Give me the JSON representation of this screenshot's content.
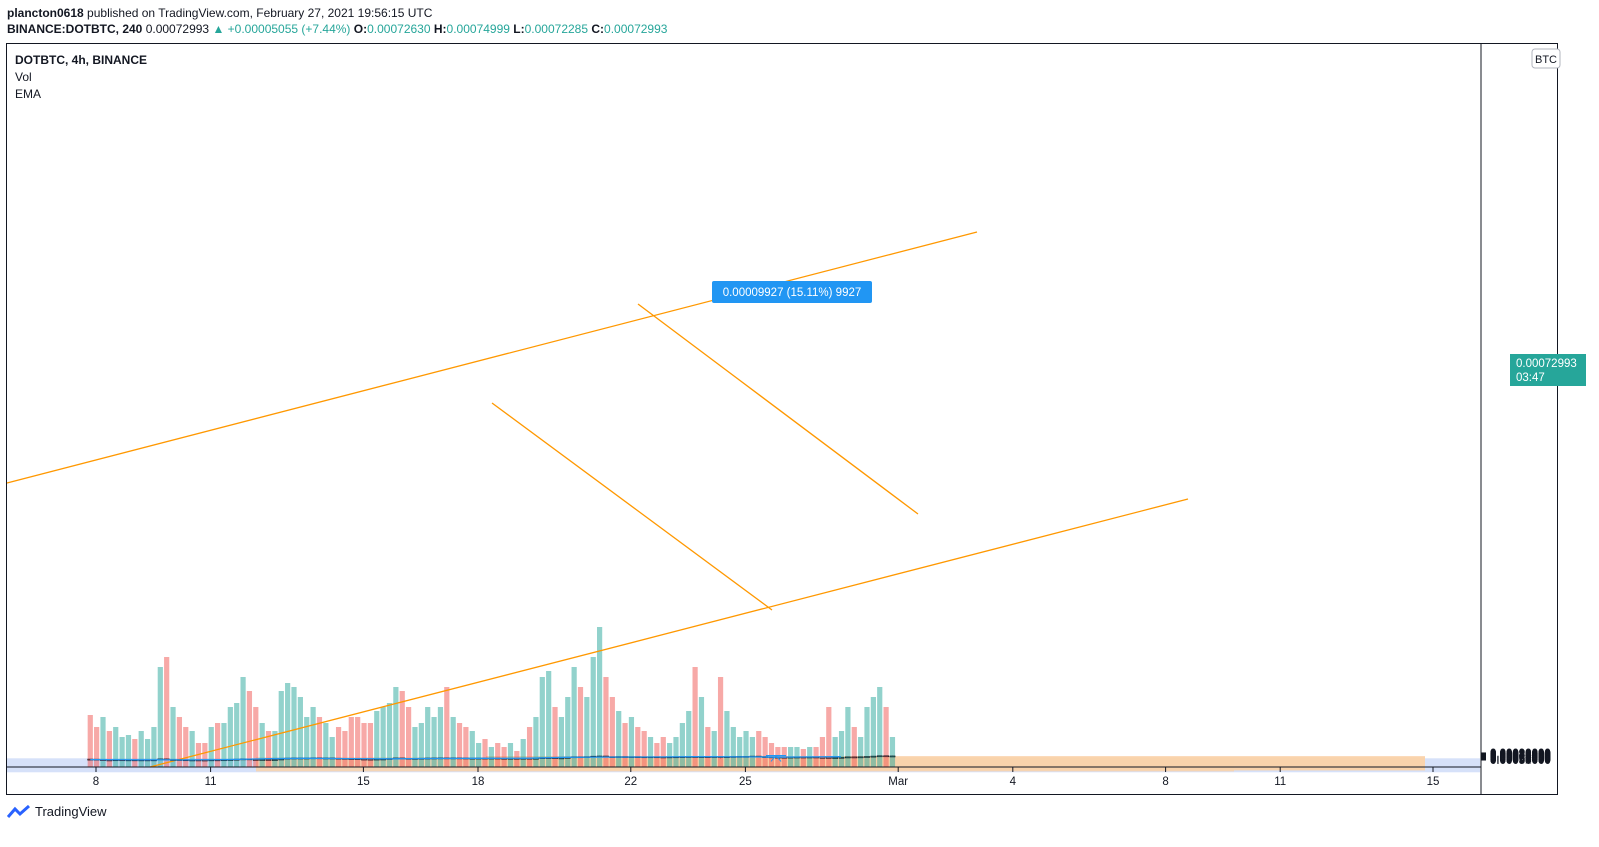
{
  "header": {
    "publisher": "plancton0618",
    "published_text": "published on TradingView.com, February 27, 2021 19:56:15 UTC",
    "symbol_interval": "BINANCE:DOTBTC, 240",
    "last": "0.00072993",
    "change": "▲ +0.00005055 (+7.44%)",
    "o_label": "O:",
    "o": "0.00072630",
    "h_label": "H:",
    "h": "0.00074999",
    "l_label": "L:",
    "l": "0.00072285",
    "c_label": "C:",
    "c": "0.00072993"
  },
  "legend": {
    "symbol": "DOTBTC, 4h, BINANCE",
    "vol": "Vol",
    "ema": "EMA"
  },
  "currency_badge": "BTC",
  "price_tag": {
    "price": "0.00072993",
    "countdown": "03:47"
  },
  "measure_label": "0.00009927 (15.11%) 9927",
  "footer": {
    "brand": "TradingView"
  },
  "colors": {
    "up": "#26a69a",
    "down": "#ef5350",
    "ema": "#2196f3",
    "trendline": "#ff9800",
    "zone_orange": "#f9d2aa",
    "zone_blue": "#cfdcf8",
    "measure": "#2196f3"
  },
  "chart_data": {
    "type": "candlestick",
    "title": "DOTBTC, 4h, BINANCE",
    "y_ticks": [
      "0.00050000",
      "0.00052000",
      "0.00054000",
      "0.00056000",
      "0.00058000",
      "0.00060000",
      "0.00062000",
      "0.00064000",
      "0.00066000",
      "0.00068000",
      "0.00070000",
      "0.00072000",
      "0.00074000",
      "0.00076000",
      "0.00078000",
      "0.00080000",
      "0.00082000",
      "0.00084000",
      "0.00086000",
      "0.00088000",
      "0.00090000"
    ],
    "y_range": [
      0.000495,
      0.00091
    ],
    "x_ticks": [
      {
        "label": "8",
        "day": 8
      },
      {
        "label": "11",
        "day": 11
      },
      {
        "label": "15",
        "day": 15
      },
      {
        "label": "18",
        "day": 18
      },
      {
        "label": "22",
        "day": 22
      },
      {
        "label": "25",
        "day": 25
      },
      {
        "label": "Mar",
        "day": 29
      },
      {
        "label": "4",
        "day": 32
      },
      {
        "label": "8",
        "day": 36
      },
      {
        "label": "11",
        "day": 39
      },
      {
        "label": "15",
        "day": 43
      }
    ],
    "x_start_day": 7.85,
    "bar_hours": 4,
    "candles": [
      [
        5.5,
        5.45,
        5.52,
        5.4
      ],
      [
        5.45,
        5.2,
        5.48,
        5.15
      ],
      [
        5.2,
        5.05,
        5.22,
        4.98
      ],
      [
        5.05,
        4.95,
        5.08,
        4.9
      ],
      [
        4.95,
        5.15,
        5.18,
        4.92
      ],
      [
        5.15,
        5.0,
        5.18,
        4.95
      ],
      [
        5.0,
        5.1,
        5.12,
        4.98
      ],
      [
        5.1,
        5.05,
        5.15,
        5.0
      ],
      [
        5.05,
        5.08,
        5.1,
        5.0
      ],
      [
        5.08,
        5.05,
        5.12,
        5.02
      ],
      [
        5.05,
        5.1,
        5.13,
        5.0
      ],
      [
        5.1,
        5.6,
        5.8,
        5.05
      ],
      [
        5.6,
        5.0,
        5.95,
        4.98
      ],
      [
        5.0,
        5.25,
        5.3,
        4.95
      ],
      [
        5.25,
        5.15,
        5.35,
        5.1
      ],
      [
        5.15,
        5.0,
        5.2,
        4.95
      ],
      [
        5.0,
        5.05,
        5.1,
        4.98
      ],
      [
        5.05,
        5.0,
        5.08,
        4.96
      ],
      [
        5.0,
        4.98,
        5.02,
        4.95
      ],
      [
        4.98,
        5.1,
        5.15,
        4.95
      ],
      [
        5.1,
        5.05,
        5.14,
        5.0
      ],
      [
        5.05,
        5.15,
        5.2,
        5.02
      ],
      [
        5.15,
        5.25,
        5.3,
        5.1
      ],
      [
        5.25,
        5.45,
        5.5,
        5.2
      ],
      [
        5.45,
        5.65,
        5.7,
        5.4
      ],
      [
        5.65,
        5.3,
        5.68,
        5.25
      ],
      [
        5.3,
        5.2,
        5.4,
        5.15
      ],
      [
        5.2,
        5.3,
        5.35,
        5.15
      ],
      [
        5.3,
        5.2,
        5.35,
        5.15
      ],
      [
        5.2,
        5.25,
        5.35,
        5.15
      ],
      [
        5.25,
        5.6,
        5.65,
        5.2
      ],
      [
        5.6,
        6.05,
        6.1,
        5.55
      ],
      [
        6.05,
        6.15,
        6.3,
        6.0
      ],
      [
        6.15,
        6.1,
        6.35,
        6.05
      ],
      [
        6.1,
        6.15,
        6.2,
        6.0
      ],
      [
        6.15,
        6.25,
        6.3,
        6.05
      ],
      [
        6.25,
        6.1,
        6.28,
        5.95
      ],
      [
        6.1,
        6.15,
        6.22,
        6.05
      ],
      [
        6.15,
        6.0,
        6.2,
        5.9
      ],
      [
        6.0,
        5.95,
        6.1,
        5.85
      ],
      [
        5.95,
        5.8,
        6.0,
        5.75
      ],
      [
        5.8,
        5.75,
        5.9,
        5.7
      ],
      [
        5.75,
        5.55,
        5.8,
        5.5
      ],
      [
        5.55,
        5.5,
        5.65,
        5.45
      ],
      [
        5.5,
        5.45,
        5.55,
        5.35
      ],
      [
        5.45,
        5.55,
        5.6,
        5.4
      ],
      [
        5.55,
        5.6,
        5.7,
        5.5
      ],
      [
        5.6,
        5.85,
        5.95,
        5.55
      ],
      [
        5.85,
        6.15,
        6.2,
        5.8
      ],
      [
        6.15,
        5.95,
        6.18,
        5.9
      ],
      [
        5.95,
        5.85,
        6.0,
        5.8
      ],
      [
        5.85,
        5.9,
        5.95,
        5.8
      ],
      [
        5.9,
        6.0,
        6.05,
        5.85
      ],
      [
        6.0,
        6.1,
        6.3,
        5.95
      ],
      [
        6.1,
        6.15,
        6.25,
        6.05
      ],
      [
        6.15,
        6.2,
        6.4,
        6.1
      ],
      [
        6.2,
        6.05,
        6.45,
        6.0
      ],
      [
        6.05,
        6.2,
        6.25,
        6.0
      ],
      [
        6.2,
        6.15,
        6.25,
        6.05
      ],
      [
        6.15,
        5.95,
        6.2,
        5.9
      ],
      [
        5.95,
        6.05,
        6.1,
        5.9
      ],
      [
        6.05,
        6.1,
        6.15,
        6.0
      ],
      [
        6.1,
        6.05,
        6.2,
        6.0
      ],
      [
        6.05,
        6.1,
        6.15,
        6.0
      ],
      [
        6.1,
        6.0,
        6.2,
        5.95
      ],
      [
        6.0,
        5.98,
        6.05,
        5.92
      ],
      [
        5.98,
        6.0,
        6.08,
        5.95
      ],
      [
        6.0,
        5.95,
        6.02,
        5.9
      ],
      [
        5.95,
        6.02,
        6.08,
        5.88
      ],
      [
        6.02,
        5.85,
        6.05,
        5.8
      ],
      [
        5.85,
        6.0,
        6.05,
        5.82
      ],
      [
        6.0,
        6.35,
        6.45,
        5.95
      ],
      [
        6.35,
        6.3,
        6.45,
        6.2
      ],
      [
        6.3,
        6.1,
        6.35,
        6.05
      ],
      [
        6.1,
        6.2,
        6.25,
        6.05
      ],
      [
        6.2,
        6.5,
        6.6,
        6.15
      ],
      [
        6.5,
        6.85,
        6.95,
        6.45
      ],
      [
        6.85,
        6.8,
        6.95,
        6.7
      ],
      [
        6.8,
        6.9,
        7.0,
        6.75
      ],
      [
        6.9,
        7.15,
        7.3,
        6.85
      ],
      [
        7.15,
        7.25,
        7.45,
        7.05
      ],
      [
        7.25,
        6.9,
        7.3,
        6.85
      ],
      [
        6.9,
        6.85,
        7.0,
        6.75
      ],
      [
        6.85,
        6.95,
        7.05,
        6.8
      ],
      [
        6.95,
        6.8,
        7.0,
        6.7
      ],
      [
        6.8,
        6.9,
        6.95,
        6.7
      ],
      [
        6.9,
        6.85,
        7.0,
        6.75
      ],
      [
        6.85,
        6.8,
        6.92,
        6.7
      ],
      [
        6.8,
        6.85,
        6.9,
        6.65
      ],
      [
        6.85,
        6.75,
        6.9,
        6.65
      ],
      [
        6.75,
        6.7,
        6.85,
        6.55
      ],
      [
        6.7,
        6.8,
        6.88,
        6.6
      ],
      [
        6.8,
        6.85,
        6.95,
        6.75
      ],
      [
        6.85,
        6.9,
        6.98,
        6.8
      ],
      [
        6.9,
        6.95,
        7.05,
        6.85
      ],
      [
        6.95,
        6.65,
        7.0,
        6.4
      ],
      [
        6.65,
        6.9,
        7.05,
        6.6
      ],
      [
        6.9,
        6.85,
        7.0,
        6.8
      ],
      [
        6.85,
        6.95,
        7.0,
        6.75
      ],
      [
        6.95,
        6.4,
        7.1,
        5.75
      ],
      [
        6.4,
        6.9,
        7.15,
        6.35
      ],
      [
        6.9,
        7.0,
        7.1,
        6.85
      ],
      [
        7.0,
        7.05,
        7.12,
        6.95
      ],
      [
        7.05,
        7.05,
        7.1,
        6.98
      ],
      [
        7.05,
        7.2,
        7.25,
        7.0
      ],
      [
        7.2,
        6.95,
        7.25,
        6.9
      ],
      [
        6.95,
        6.8,
        7.0,
        6.75
      ],
      [
        6.8,
        6.65,
        6.85,
        6.6
      ],
      [
        6.65,
        6.6,
        6.8,
        6.55
      ],
      [
        6.6,
        6.55,
        6.65,
        6.5
      ],
      [
        6.55,
        6.65,
        6.72,
        6.5
      ],
      [
        6.65,
        6.7,
        6.75,
        6.6
      ],
      [
        6.7,
        6.65,
        6.78,
        6.55
      ],
      [
        6.65,
        6.72,
        6.78,
        6.6
      ],
      [
        6.72,
        6.55,
        6.75,
        6.5
      ],
      [
        6.55,
        6.5,
        6.6,
        6.45
      ],
      [
        6.5,
        6.35,
        6.55,
        6.25
      ],
      [
        6.35,
        6.4,
        6.5,
        6.25
      ],
      [
        6.4,
        6.55,
        6.6,
        6.35
      ],
      [
        6.55,
        6.75,
        6.9,
        6.5
      ],
      [
        6.75,
        6.7,
        6.9,
        6.65
      ],
      [
        6.7,
        6.8,
        6.85,
        6.65
      ],
      [
        6.8,
        7.0,
        7.1,
        6.75
      ],
      [
        7.0,
        7.2,
        7.25,
        6.95
      ],
      [
        7.2,
        7.4,
        7.55,
        7.15
      ],
      [
        7.4,
        7.3,
        7.55,
        7.25
      ],
      [
        7.3,
        7.3,
        7.5,
        7.22
      ]
    ],
    "volume": [
      [
        0.26,
        0
      ],
      [
        0.2,
        0
      ],
      [
        0.25,
        1
      ],
      [
        0.18,
        0
      ],
      [
        0.2,
        1
      ],
      [
        0.15,
        1
      ],
      [
        0.16,
        1
      ],
      [
        0.14,
        0
      ],
      [
        0.18,
        1
      ],
      [
        0.14,
        1
      ],
      [
        0.2,
        1
      ],
      [
        0.5,
        1
      ],
      [
        0.55,
        0
      ],
      [
        0.3,
        1
      ],
      [
        0.25,
        0
      ],
      [
        0.2,
        0
      ],
      [
        0.18,
        1
      ],
      [
        0.12,
        0
      ],
      [
        0.12,
        0
      ],
      [
        0.2,
        1
      ],
      [
        0.22,
        0
      ],
      [
        0.22,
        1
      ],
      [
        0.3,
        1
      ],
      [
        0.32,
        1
      ],
      [
        0.45,
        1
      ],
      [
        0.38,
        0
      ],
      [
        0.3,
        0
      ],
      [
        0.22,
        1
      ],
      [
        0.18,
        0
      ],
      [
        0.18,
        1
      ],
      [
        0.38,
        1
      ],
      [
        0.42,
        1
      ],
      [
        0.4,
        1
      ],
      [
        0.35,
        1
      ],
      [
        0.25,
        1
      ],
      [
        0.3,
        1
      ],
      [
        0.25,
        0
      ],
      [
        0.22,
        1
      ],
      [
        0.15,
        1
      ],
      [
        0.2,
        0
      ],
      [
        0.18,
        0
      ],
      [
        0.25,
        0
      ],
      [
        0.25,
        0
      ],
      [
        0.22,
        0
      ],
      [
        0.22,
        0
      ],
      [
        0.28,
        1
      ],
      [
        0.3,
        1
      ],
      [
        0.32,
        1
      ],
      [
        0.4,
        1
      ],
      [
        0.38,
        0
      ],
      [
        0.3,
        0
      ],
      [
        0.2,
        1
      ],
      [
        0.22,
        1
      ],
      [
        0.3,
        1
      ],
      [
        0.25,
        1
      ],
      [
        0.3,
        1
      ],
      [
        0.4,
        0
      ],
      [
        0.25,
        1
      ],
      [
        0.22,
        0
      ],
      [
        0.2,
        0
      ],
      [
        0.18,
        1
      ],
      [
        0.12,
        1
      ],
      [
        0.14,
        0
      ],
      [
        0.1,
        1
      ],
      [
        0.12,
        0
      ],
      [
        0.1,
        0
      ],
      [
        0.12,
        1
      ],
      [
        0.08,
        0
      ],
      [
        0.14,
        1
      ],
      [
        0.2,
        0
      ],
      [
        0.25,
        1
      ],
      [
        0.45,
        1
      ],
      [
        0.48,
        1
      ],
      [
        0.3,
        0
      ],
      [
        0.25,
        1
      ],
      [
        0.35,
        1
      ],
      [
        0.5,
        1
      ],
      [
        0.4,
        0
      ],
      [
        0.35,
        1
      ],
      [
        0.55,
        1
      ],
      [
        0.7,
        1
      ],
      [
        0.45,
        0
      ],
      [
        0.35,
        0
      ],
      [
        0.28,
        1
      ],
      [
        0.22,
        0
      ],
      [
        0.25,
        1
      ],
      [
        0.2,
        0
      ],
      [
        0.18,
        0
      ],
      [
        0.15,
        1
      ],
      [
        0.12,
        0
      ],
      [
        0.15,
        0
      ],
      [
        0.12,
        1
      ],
      [
        0.15,
        1
      ],
      [
        0.22,
        1
      ],
      [
        0.28,
        1
      ],
      [
        0.5,
        0
      ],
      [
        0.35,
        1
      ],
      [
        0.2,
        0
      ],
      [
        0.18,
        1
      ],
      [
        0.45,
        0
      ],
      [
        0.28,
        1
      ],
      [
        0.2,
        1
      ],
      [
        0.15,
        1
      ],
      [
        0.18,
        1
      ],
      [
        0.15,
        1
      ],
      [
        0.18,
        0
      ],
      [
        0.15,
        0
      ],
      [
        0.12,
        0
      ],
      [
        0.1,
        0
      ],
      [
        0.1,
        0
      ],
      [
        0.1,
        1
      ],
      [
        0.1,
        1
      ],
      [
        0.09,
        0
      ],
      [
        0.1,
        1
      ],
      [
        0.1,
        0
      ],
      [
        0.15,
        0
      ],
      [
        0.3,
        0
      ],
      [
        0.15,
        1
      ],
      [
        0.18,
        1
      ],
      [
        0.3,
        1
      ],
      [
        0.2,
        0
      ],
      [
        0.15,
        1
      ],
      [
        0.3,
        1
      ],
      [
        0.35,
        1
      ],
      [
        0.4,
        1
      ],
      [
        0.3,
        0
      ],
      [
        0.15,
        1
      ]
    ],
    "ema": [
      [
        7.85,
        5.25
      ],
      [
        9,
        5.1
      ],
      [
        10.2,
        5.08
      ],
      [
        11.4,
        5.25
      ],
      [
        12.5,
        5.75
      ],
      [
        13.5,
        5.95
      ],
      [
        14.6,
        5.8
      ],
      [
        15.7,
        5.7
      ],
      [
        16.8,
        5.85
      ],
      [
        18.2,
        5.95
      ],
      [
        19.3,
        6.05
      ],
      [
        20.3,
        6.55
      ],
      [
        21.2,
        6.65
      ],
      [
        22.5,
        6.68
      ],
      [
        23.7,
        6.88
      ],
      [
        25.0,
        6.75
      ],
      [
        26.2,
        6.68
      ],
      [
        27.1,
        6.8
      ],
      [
        27.5,
        6.9
      ]
    ]
  }
}
